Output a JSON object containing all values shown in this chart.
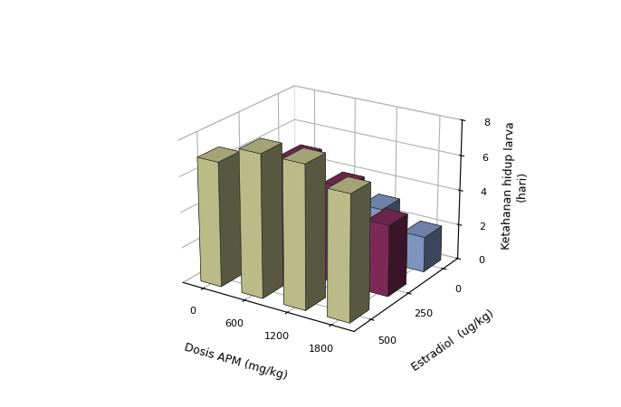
{
  "title": "",
  "ylabel": "Ketahanan hidup larva\n(hari)",
  "xlabel": "Dosis APM (mg/kg)",
  "zlabel": "Estradiol  (ug/kg)",
  "apm_values": [
    0,
    600,
    1200,
    1800
  ],
  "estradiol_values": [
    0,
    250,
    500
  ],
  "data": {
    "comment": "rows=estradiol[0,250,500], cols=apm[0,600,1200,1800]",
    "est0": [
      4.0,
      3.5,
      3.0,
      2.0
    ],
    "est250": [
      6.0,
      6.5,
      5.5,
      4.0
    ],
    "est500": [
      7.0,
      8.0,
      8.0,
      7.0
    ]
  },
  "colors": [
    "#8fa8d8",
    "#8c3060",
    "#d4d49a"
  ],
  "bar_width": 0.5,
  "bar_depth": 0.5,
  "zlim": [
    0,
    8
  ],
  "zticks": [
    0,
    2,
    4,
    6,
    8
  ],
  "figsize": [
    6.86,
    4.5
  ],
  "dpi": 100,
  "elev": 22,
  "azim": -57
}
